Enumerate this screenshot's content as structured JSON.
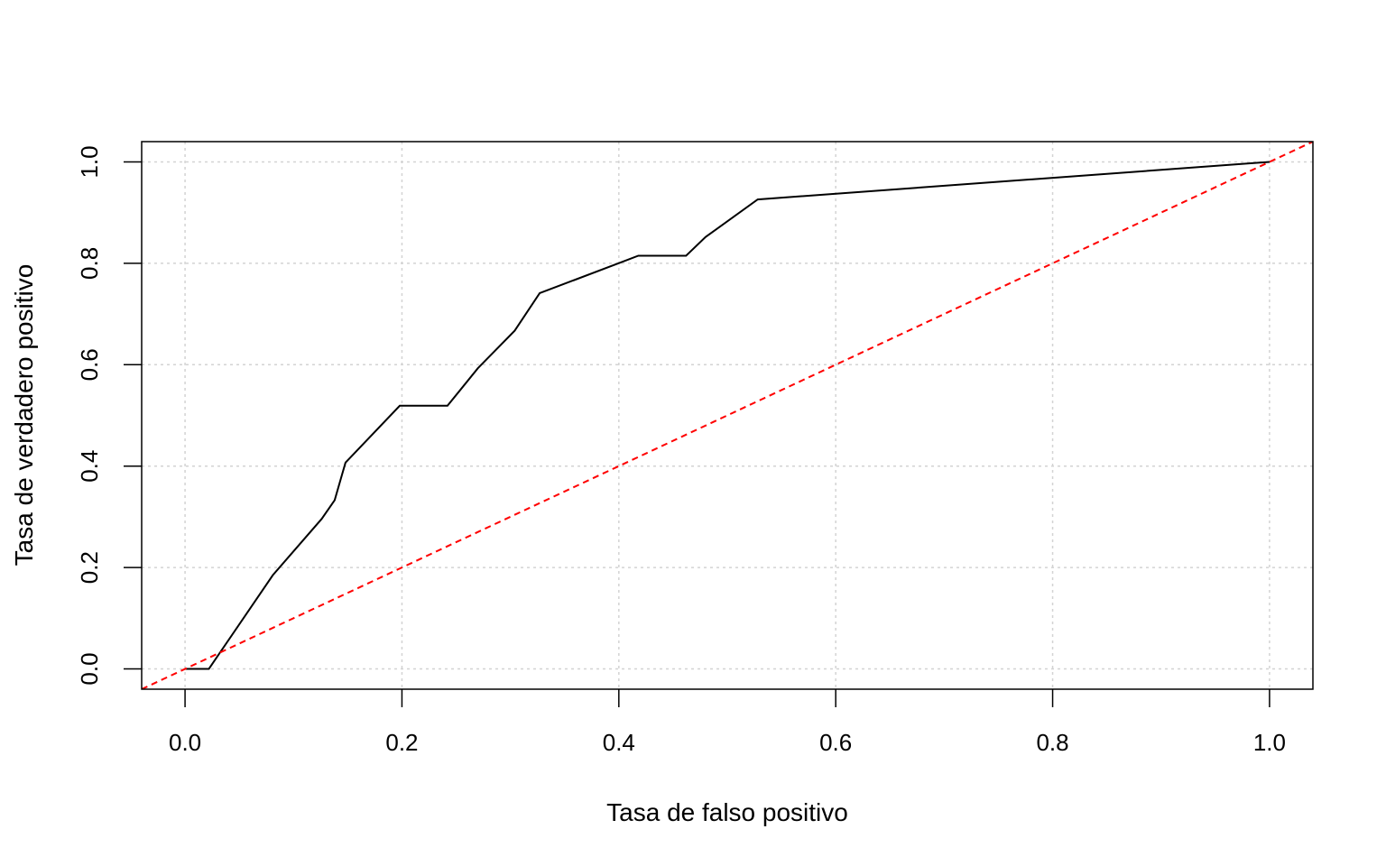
{
  "chart_data": {
    "type": "line",
    "title": "",
    "xlabel": "Tasa de falso positivo",
    "ylabel": "Tasa de verdadero positivo",
    "xlim": [
      -0.04,
      1.04
    ],
    "ylim": [
      -0.04,
      1.04
    ],
    "xticks": [
      0.0,
      0.2,
      0.4,
      0.6,
      0.8,
      1.0
    ],
    "yticks": [
      0.0,
      0.2,
      0.4,
      0.6,
      0.8,
      1.0
    ],
    "xtick_labels": [
      "0.0",
      "0.2",
      "0.4",
      "0.6",
      "0.8",
      "1.0"
    ],
    "ytick_labels": [
      "0.0",
      "0.2",
      "0.4",
      "0.6",
      "0.8",
      "1.0"
    ],
    "grid": true,
    "series": [
      {
        "color": "#000000",
        "style": "solid",
        "x": [
          0.0,
          0.022,
          0.081,
          0.126,
          0.138,
          0.148,
          0.198,
          0.242,
          0.27,
          0.304,
          0.327,
          0.402,
          0.418,
          0.462,
          0.48,
          0.528,
          1.0
        ],
        "y": [
          0.0,
          0.0,
          0.185,
          0.296,
          0.333,
          0.407,
          0.519,
          0.519,
          0.593,
          0.667,
          0.741,
          0.802,
          0.815,
          0.815,
          0.852,
          0.926,
          1.0
        ]
      },
      {
        "color": "#ff0000",
        "style": "dashed",
        "x": [
          -0.04,
          1.04
        ],
        "y": [
          -0.04,
          1.04
        ]
      }
    ]
  }
}
